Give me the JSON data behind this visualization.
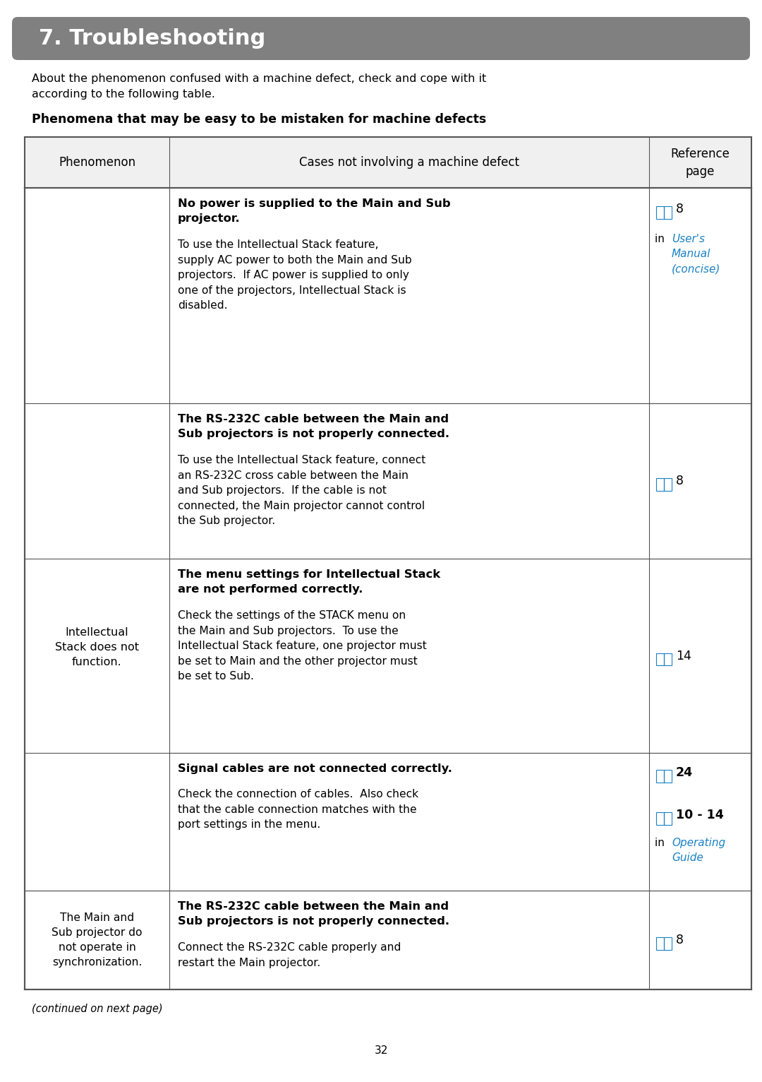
{
  "title": "7. Troubleshooting",
  "intro": "About the phenomenon confused with a machine defect, check and cope with it\naccording to the following table.",
  "table_title": "Phenomena that may be easy to be mistaken for machine defects",
  "header": [
    "Phenomenon",
    "Cases not involving a machine defect",
    "Reference\npage"
  ],
  "rows": [
    {
      "phenomenon": "",
      "cases": [
        {
          "bold": true,
          "text": "No power is supplied to the Main and Sub projector."
        },
        {
          "bold": false,
          "text": "To use the Intellectual Stack feature, supply AC power to both the Main and Sub projectors.  If AC power is supplied to only one of the projectors, Intellectual Stack is disabled."
        }
      ],
      "ref": [
        {
          "icon": true,
          "text": "8",
          "newline": true
        },
        {
          "plain": "in "
        },
        {
          "italic_blue": "User's\nManual\n(concise)"
        }
      ]
    },
    {
      "phenomenon": "",
      "cases": [
        {
          "bold": true,
          "text": "The RS-232C cable between the Main and Sub projectors is not properly connected."
        },
        {
          "bold": false,
          "text": "To use the Intellectual Stack feature, connect an RS-232C cross cable between the Main and Sub projectors.  If the cable is not connected, the Main projector cannot control the Sub projector."
        }
      ],
      "ref": [
        {
          "icon": true,
          "text": "8"
        }
      ]
    },
    {
      "phenomenon": "Intellectual\nStack does not\nfunction.",
      "cases": [
        {
          "bold": true,
          "text": "The menu settings for Intellectual Stack are not performed correctly."
        },
        {
          "bold": false,
          "text": "Check the settings of the STACK menu on the Main and Sub projectors.  To use the Intellectual Stack feature, one projector must be set to Main and the other projector must be set to Sub."
        }
      ],
      "ref": [
        {
          "icon": true,
          "text": "14"
        }
      ]
    },
    {
      "phenomenon": "",
      "cases": [
        {
          "bold": true,
          "text": "Signal cables are not connected correctly."
        },
        {
          "bold": false,
          "text": "Check the connection of cables.  Also check that the cable connection matches with the port settings in the menu."
        }
      ],
      "ref": [
        {
          "icon": true,
          "text": "24",
          "newline": true
        },
        {
          "icon": true,
          "text": "10 - 14",
          "newline": true
        },
        {
          "plain": "in "
        },
        {
          "italic_blue": "Operating\nGuide"
        }
      ]
    },
    {
      "phenomenon": "The Main and\nSub projector do\nnot operate in\nsynchronization.",
      "cases": [
        {
          "bold": true,
          "text": "The RS-232C cable between the Main and Sub projectors is not properly connected."
        },
        {
          "bold": false,
          "text": "Connect the RS-232C cable properly and restart the Main projector."
        }
      ],
      "ref": [
        {
          "icon": true,
          "text": "8"
        }
      ]
    }
  ],
  "footer": "(continued on next page)",
  "page_number": "32",
  "bg_color": "#ffffff",
  "header_bg": "#e8e8e8",
  "title_bg": "#808080",
  "title_text_color": "#ffffff",
  "border_color": "#555555",
  "blue_color": "#1a82c4",
  "bold_color": "#000000",
  "normal_color": "#000000"
}
